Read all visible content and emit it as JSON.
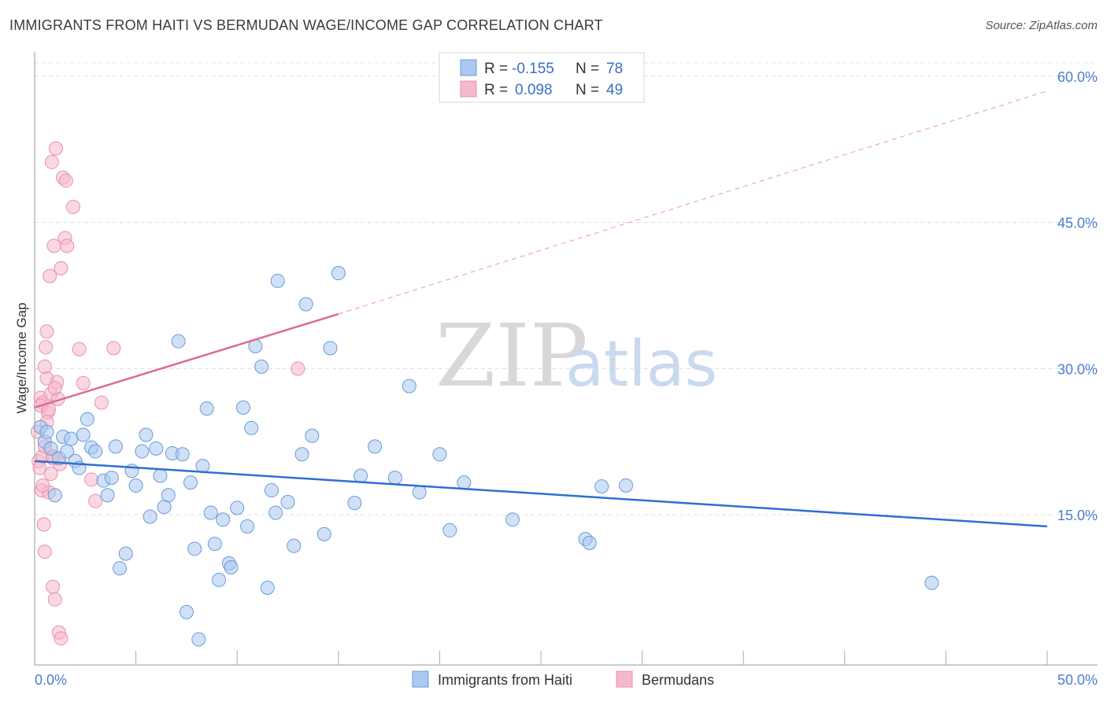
{
  "title": "IMMIGRANTS FROM HAITI VS BERMUDAN WAGE/INCOME GAP CORRELATION CHART",
  "source": "Source: ZipAtlas.com",
  "watermark": {
    "zip": "ZIP",
    "atlas": "atlas"
  },
  "legend": {
    "r_label": "R =",
    "n_label": "N =",
    "series1": {
      "r": "-0.155",
      "n": "78"
    },
    "series2": {
      "r": "0.098",
      "n": "49"
    }
  },
  "colors": {
    "haiti_fill": "#aac8f0",
    "haiti_stroke": "#6a9ad8",
    "haiti_line": "#2f6fcf",
    "berm_fill": "#f6b8cc",
    "berm_stroke": "#e890ab",
    "berm_line": "#e06a93",
    "tick_text": "#4a7fd0"
  },
  "chart_data": {
    "type": "scatter",
    "title": "IMMIGRANTS FROM HAITI VS BERMUDAN WAGE/INCOME GAP CORRELATION CHART",
    "xlabel": "",
    "ylabel": "Wage/Income Gap",
    "xlim": [
      0,
      50
    ],
    "ylim": [
      0,
      63
    ],
    "x_tick_labels": [
      "0.0%",
      "50.0%"
    ],
    "y_ticks": [
      15,
      30,
      45,
      60
    ],
    "y_tick_labels": [
      "15.0%",
      "30.0%",
      "45.0%",
      "60.0%"
    ],
    "grid": true,
    "legend_position": "top-center",
    "series": [
      {
        "name": "Immigrants from Haiti",
        "r": -0.155,
        "n": 78,
        "trend": {
          "x0": 0,
          "y0": 20.5,
          "x1": 50,
          "y1": 13.8
        },
        "points": [
          [
            0.3,
            24.0
          ],
          [
            0.5,
            22.5
          ],
          [
            0.6,
            23.5
          ],
          [
            0.8,
            21.8
          ],
          [
            1.0,
            17.0
          ],
          [
            1.2,
            20.8
          ],
          [
            1.4,
            23.0
          ],
          [
            1.6,
            21.5
          ],
          [
            1.8,
            22.8
          ],
          [
            2.0,
            20.5
          ],
          [
            2.2,
            19.8
          ],
          [
            2.4,
            23.2
          ],
          [
            2.6,
            24.8
          ],
          [
            2.8,
            21.9
          ],
          [
            3.0,
            21.5
          ],
          [
            3.4,
            18.5
          ],
          [
            3.6,
            17.0
          ],
          [
            3.8,
            18.8
          ],
          [
            4.0,
            22.0
          ],
          [
            4.2,
            9.5
          ],
          [
            4.5,
            11.0
          ],
          [
            4.8,
            19.5
          ],
          [
            5.0,
            18.0
          ],
          [
            5.3,
            21.5
          ],
          [
            5.5,
            23.2
          ],
          [
            5.7,
            14.8
          ],
          [
            6.0,
            21.8
          ],
          [
            6.2,
            19.0
          ],
          [
            6.4,
            15.8
          ],
          [
            6.6,
            17.0
          ],
          [
            6.8,
            21.3
          ],
          [
            7.1,
            32.8
          ],
          [
            7.3,
            21.2
          ],
          [
            7.5,
            5.0
          ],
          [
            7.7,
            18.3
          ],
          [
            7.9,
            11.5
          ],
          [
            8.1,
            2.2
          ],
          [
            8.3,
            20.0
          ],
          [
            8.5,
            25.9
          ],
          [
            8.7,
            15.2
          ],
          [
            8.9,
            12.0
          ],
          [
            9.1,
            8.3
          ],
          [
            9.3,
            14.5
          ],
          [
            9.6,
            10.0
          ],
          [
            9.7,
            9.6
          ],
          [
            10.0,
            15.7
          ],
          [
            10.3,
            26.0
          ],
          [
            10.5,
            13.8
          ],
          [
            10.7,
            23.9
          ],
          [
            10.9,
            32.3
          ],
          [
            11.2,
            30.2
          ],
          [
            11.5,
            7.5
          ],
          [
            11.7,
            17.5
          ],
          [
            11.9,
            15.2
          ],
          [
            12.0,
            39.0
          ],
          [
            12.5,
            16.3
          ],
          [
            12.8,
            11.8
          ],
          [
            13.2,
            21.2
          ],
          [
            13.4,
            36.6
          ],
          [
            13.7,
            23.1
          ],
          [
            14.3,
            13.0
          ],
          [
            14.6,
            32.1
          ],
          [
            15.0,
            39.8
          ],
          [
            15.8,
            16.2
          ],
          [
            16.1,
            19.0
          ],
          [
            16.8,
            22.0
          ],
          [
            17.8,
            18.8
          ],
          [
            18.5,
            28.2
          ],
          [
            19.0,
            17.3
          ],
          [
            20.0,
            21.2
          ],
          [
            20.5,
            13.4
          ],
          [
            21.2,
            18.3
          ],
          [
            23.6,
            14.5
          ],
          [
            27.2,
            12.5
          ],
          [
            27.4,
            12.1
          ],
          [
            28.0,
            17.9
          ],
          [
            29.2,
            18.0
          ],
          [
            44.3,
            8.0
          ]
        ]
      },
      {
        "name": "Bermudans",
        "r": 0.098,
        "n": 49,
        "trend": {
          "x0": 0,
          "y0": 26.0,
          "x1": 15.0,
          "y1": 35.6
        },
        "trend_dashed": {
          "x0": 15.0,
          "y0": 35.6,
          "x1": 50,
          "y1": 58.5
        },
        "points": [
          [
            0.15,
            23.5
          ],
          [
            0.2,
            20.5
          ],
          [
            0.25,
            19.8
          ],
          [
            0.3,
            27.0
          ],
          [
            0.35,
            17.5
          ],
          [
            0.4,
            21.0
          ],
          [
            0.4,
            26.5
          ],
          [
            0.45,
            14.0
          ],
          [
            0.5,
            11.2
          ],
          [
            0.5,
            22.0
          ],
          [
            0.55,
            32.2
          ],
          [
            0.6,
            33.8
          ],
          [
            0.6,
            29.0
          ],
          [
            0.65,
            25.5
          ],
          [
            0.7,
            17.3
          ],
          [
            0.75,
            39.5
          ],
          [
            0.8,
            19.2
          ],
          [
            0.8,
            27.4
          ],
          [
            0.85,
            51.2
          ],
          [
            0.9,
            7.6
          ],
          [
            0.9,
            21.0
          ],
          [
            0.95,
            42.6
          ],
          [
            1.0,
            6.3
          ],
          [
            1.05,
            52.6
          ],
          [
            1.1,
            28.6
          ],
          [
            1.15,
            26.9
          ],
          [
            1.2,
            2.9
          ],
          [
            1.25,
            20.2
          ],
          [
            1.3,
            40.3
          ],
          [
            1.3,
            2.3
          ],
          [
            1.4,
            49.6
          ],
          [
            1.5,
            43.4
          ],
          [
            1.55,
            49.3
          ],
          [
            1.6,
            42.6
          ],
          [
            1.9,
            46.6
          ],
          [
            2.2,
            32.0
          ],
          [
            2.4,
            28.5
          ],
          [
            2.8,
            18.6
          ],
          [
            3.0,
            16.4
          ],
          [
            3.3,
            26.5
          ],
          [
            3.9,
            32.1
          ],
          [
            13.0,
            30.0
          ],
          [
            0.3,
            26.2
          ],
          [
            0.5,
            30.2
          ],
          [
            0.7,
            25.8
          ],
          [
            1.0,
            28.0
          ],
          [
            0.6,
            24.5
          ],
          [
            0.9,
            20.8
          ],
          [
            0.4,
            18.0
          ]
        ]
      }
    ]
  },
  "bottom_legend": {
    "item1": "Immigrants from Haiti",
    "item2": "Bermudans"
  }
}
